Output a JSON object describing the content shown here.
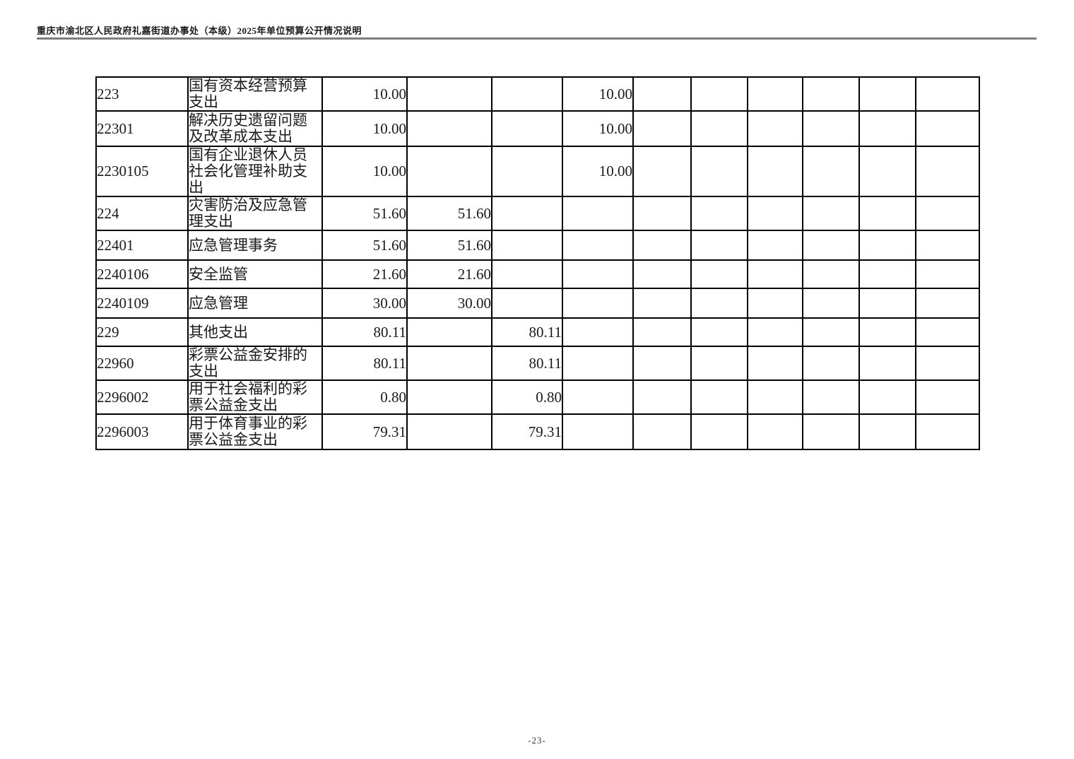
{
  "page": {
    "header_title": "重庆市渝北区人民政府礼嘉街道办事处（本级）2025年单位预算公开情况说明",
    "footer_page_number": "-23-"
  },
  "colors": {
    "text": "#1a1a1a",
    "table_border": "#000000",
    "header_rule": "#7d7d7d"
  },
  "table": {
    "rows": [
      {
        "code": "223",
        "name": "国有资本经营预算支出",
        "values": [
          "10.00",
          "",
          "",
          "10.00",
          "",
          "",
          "",
          "",
          "",
          ""
        ]
      },
      {
        "code": "22301",
        "name": "解决历史遗留问题及改革成本支出",
        "values": [
          "10.00",
          "",
          "",
          "10.00",
          "",
          "",
          "",
          "",
          "",
          ""
        ]
      },
      {
        "code": "2230105",
        "name": "国有企业退休人员社会化管理补助支出",
        "values": [
          "10.00",
          "",
          "",
          "10.00",
          "",
          "",
          "",
          "",
          "",
          ""
        ]
      },
      {
        "code": "224",
        "name": "灾害防治及应急管理支出",
        "values": [
          "51.60",
          "51.60",
          "",
          "",
          "",
          "",
          "",
          "",
          "",
          ""
        ]
      },
      {
        "code": "22401",
        "name": "应急管理事务",
        "values": [
          "51.60",
          "51.60",
          "",
          "",
          "",
          "",
          "",
          "",
          "",
          ""
        ]
      },
      {
        "code": "2240106",
        "name": "安全监管",
        "values": [
          "21.60",
          "21.60",
          "",
          "",
          "",
          "",
          "",
          "",
          "",
          ""
        ]
      },
      {
        "code": "2240109",
        "name": "应急管理",
        "values": [
          "30.00",
          "30.00",
          "",
          "",
          "",
          "",
          "",
          "",
          "",
          ""
        ]
      },
      {
        "code": "229",
        "name": "其他支出",
        "values": [
          "80.11",
          "",
          "80.11",
          "",
          "",
          "",
          "",
          "",
          "",
          ""
        ]
      },
      {
        "code": "22960",
        "name": "彩票公益金安排的支出",
        "values": [
          "80.11",
          "",
          "80.11",
          "",
          "",
          "",
          "",
          "",
          "",
          ""
        ]
      },
      {
        "code": "2296002",
        "name": "用于社会福利的彩票公益金支出",
        "values": [
          "0.80",
          "",
          "0.80",
          "",
          "",
          "",
          "",
          "",
          "",
          ""
        ]
      },
      {
        "code": "2296003",
        "name": "用于体育事业的彩票公益金支出",
        "values": [
          "79.31",
          "",
          "79.31",
          "",
          "",
          "",
          "",
          "",
          "",
          ""
        ]
      }
    ]
  }
}
